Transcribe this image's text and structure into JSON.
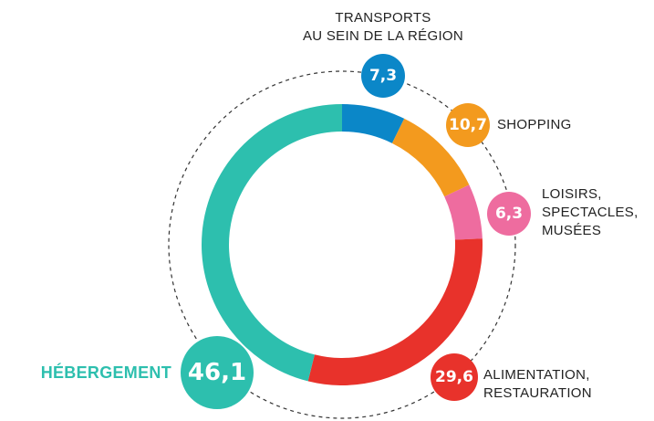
{
  "chart_data": {
    "type": "donut",
    "categories": [
      "TRANSPORTS\nAU SEIN DE LA RÉGION",
      "SHOPPING",
      "LOISIRS,\nSPECTACLES,\nMUSÉES",
      "ALIMENTATION,\nRESTAURATION",
      "HÉBERGEMENT"
    ],
    "values": [
      7.3,
      10.7,
      6.3,
      29.6,
      46.1
    ],
    "value_labels": [
      "7,3",
      "10,7",
      "6,3",
      "29,6",
      "46,1"
    ],
    "colors": [
      "#0b87c8",
      "#f39a1e",
      "#ee6c9f",
      "#e8322b",
      "#2dbfae"
    ]
  }
}
